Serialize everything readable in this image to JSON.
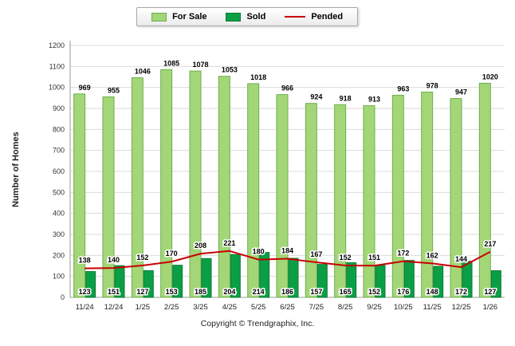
{
  "chart_data": {
    "type": "bar",
    "title": "",
    "categories": [
      "11/24",
      "12/24",
      "1/25",
      "2/25",
      "3/25",
      "4/25",
      "5/25",
      "6/25",
      "7/25",
      "8/25",
      "9/25",
      "10/25",
      "11/25",
      "12/25",
      "1/26"
    ],
    "series": [
      {
        "name": "For Sale",
        "type": "bar",
        "color": "#A3D677",
        "border_color": "#6FAE4F",
        "values": [
          969,
          955,
          1046,
          1085,
          1078,
          1053,
          1018,
          966,
          924,
          918,
          913,
          963,
          978,
          947,
          1020
        ]
      },
      {
        "name": "Sold",
        "type": "bar",
        "color": "#0B9F45",
        "border_color": "#0A7A35",
        "values": [
          123,
          151,
          127,
          153,
          185,
          204,
          214,
          186,
          157,
          165,
          152,
          176,
          148,
          172,
          127
        ]
      },
      {
        "name": "Pended",
        "type": "line",
        "color": "#C90000",
        "values": [
          138,
          140,
          152,
          170,
          208,
          221,
          180,
          184,
          167,
          152,
          151,
          172,
          162,
          144,
          217
        ]
      }
    ],
    "xlabel": "",
    "ylabel": "Number of Homes",
    "ylim": [
      0,
      1200
    ],
    "ytick_step": 100,
    "grid": true,
    "grid_color": "#DBDBDB",
    "axis_color": "#9A9A9A",
    "legend_position": "top-center"
  },
  "footer": {
    "text": "Copyright © Trendgraphix, Inc."
  }
}
